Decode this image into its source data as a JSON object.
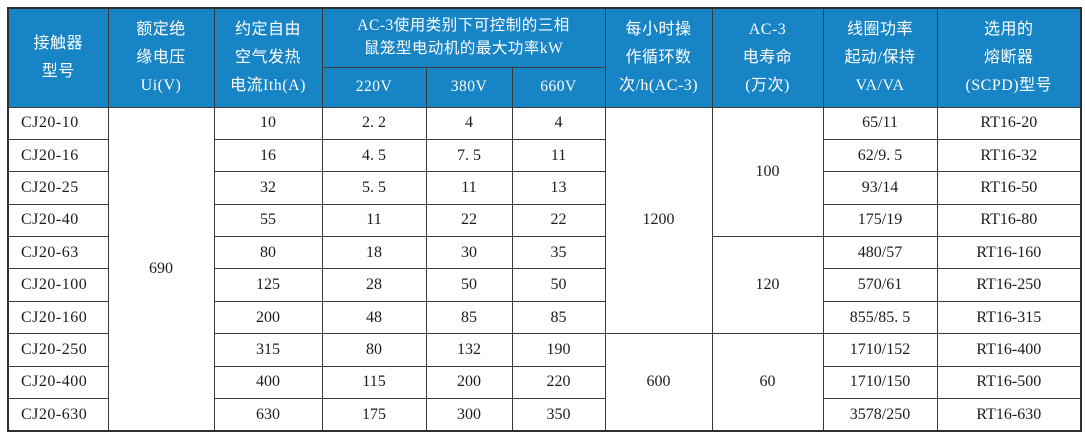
{
  "table": {
    "title_semantic": "CJ20 contactor specification table",
    "accent_color": "#1784c5",
    "header": {
      "col_model": "接触器\n型号",
      "col_ui": "额定绝\n缘电压\nUi(V)",
      "col_ith": "约定自由\n空气发热\n电流Ith(A)",
      "col_power_group": "AC-3使用类别下可控制的三相\n鼠笼型电动机的最大功率kW",
      "col_220": "220V",
      "col_380": "380V",
      "col_660": "660V",
      "col_cycles": "每小时操\n作循环数\n次/h(AC-3)",
      "col_life": "AC-3\n电寿命\n(万次)",
      "col_coil": "线圈功率\n起动/保持\nVA/VA",
      "col_fuse": "选用的\n熔断器\n(SCPD)型号"
    },
    "rows": [
      {
        "model": "CJ20-10",
        "ith": "10",
        "p220": "2. 2",
        "p380": "4",
        "p660": "4",
        "coil": "65/11",
        "fuse": "RT16-20"
      },
      {
        "model": "CJ20-16",
        "ith": "16",
        "p220": "4. 5",
        "p380": "7. 5",
        "p660": "11",
        "coil": "62/9. 5",
        "fuse": "RT16-32"
      },
      {
        "model": "CJ20-25",
        "ith": "32",
        "p220": "5. 5",
        "p380": "11",
        "p660": "13",
        "coil": "93/14",
        "fuse": "RT16-50"
      },
      {
        "model": "CJ20-40",
        "ith": "55",
        "p220": "11",
        "p380": "22",
        "p660": "22",
        "coil": "175/19",
        "fuse": "RT16-80"
      },
      {
        "model": "CJ20-63",
        "ith": "80",
        "p220": "18",
        "p380": "30",
        "p660": "35",
        "coil": "480/57",
        "fuse": "RT16-160"
      },
      {
        "model": "CJ20-100",
        "ith": "125",
        "p220": "28",
        "p380": "50",
        "p660": "50",
        "coil": "570/61",
        "fuse": "RT16-250"
      },
      {
        "model": "CJ20-160",
        "ith": "200",
        "p220": "48",
        "p380": "85",
        "p660": "85",
        "coil": "855/85. 5",
        "fuse": "RT16-315"
      },
      {
        "model": "CJ20-250",
        "ith": "315",
        "p220": "80",
        "p380": "132",
        "p660": "190",
        "coil": "1710/152",
        "fuse": "RT16-400"
      },
      {
        "model": "CJ20-400",
        "ith": "400",
        "p220": "115",
        "p380": "200",
        "p660": "220",
        "coil": "1710/150",
        "fuse": "RT16-500"
      },
      {
        "model": "CJ20-630",
        "ith": "630",
        "p220": "175",
        "p380": "300",
        "p660": "350",
        "coil": "3578/250",
        "fuse": "RT16-630"
      }
    ],
    "merged": {
      "ui_voltage": {
        "value": "690",
        "start": 0,
        "span": 10
      },
      "cycles": [
        {
          "value": "1200",
          "start": 0,
          "span": 7
        },
        {
          "value": "600",
          "start": 7,
          "span": 3
        }
      ],
      "life": [
        {
          "value": "100",
          "start": 0,
          "span": 4
        },
        {
          "value": "120",
          "start": 4,
          "span": 3
        },
        {
          "value": "60",
          "start": 7,
          "span": 3
        }
      ]
    }
  }
}
